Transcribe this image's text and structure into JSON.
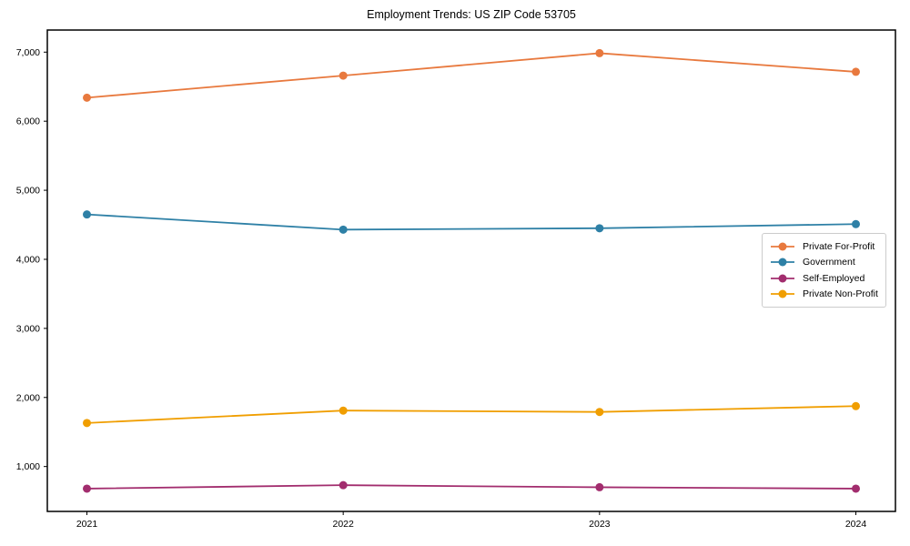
{
  "chart_data": {
    "type": "line",
    "title": "Employment Trends: US ZIP Code 53705",
    "categories": [
      "2021",
      "2022",
      "2023",
      "2024"
    ],
    "series": [
      {
        "name": "Private For-Profit",
        "color": "#E8793E",
        "values": [
          6340,
          6660,
          6985,
          6715
        ]
      },
      {
        "name": "Government",
        "color": "#2E80A6",
        "values": [
          4650,
          4430,
          4450,
          4510
        ]
      },
      {
        "name": "Self-Employed",
        "color": "#A22D6E",
        "values": [
          680,
          730,
          700,
          680
        ]
      },
      {
        "name": "Private Non-Profit",
        "color": "#F09E00",
        "values": [
          1630,
          1810,
          1790,
          1875
        ]
      }
    ],
    "xlabel": "",
    "ylabel": "",
    "ylim": [
      350,
      7320
    ],
    "yticks": [
      1000,
      2000,
      3000,
      4000,
      5000,
      6000,
      7000
    ],
    "grid": false,
    "legend_position": "right-middle",
    "axis_color": "#000000",
    "background_color": "#ffffff",
    "tick_label_format": "thousands-comma"
  }
}
